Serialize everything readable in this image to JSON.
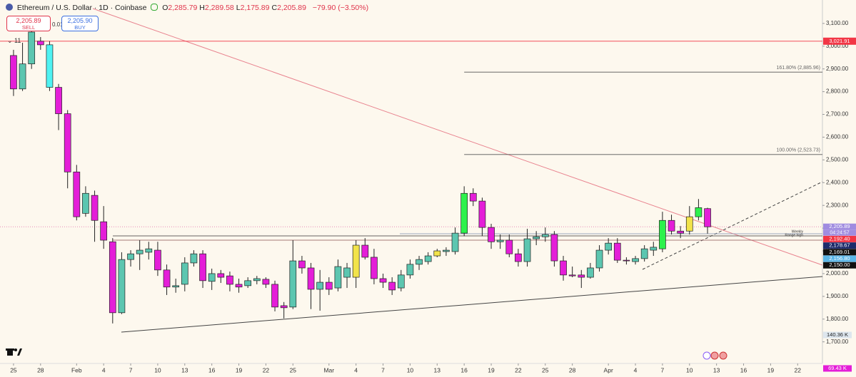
{
  "header": {
    "title": "Ethereum / U.S. Dollar · 1D · Coinbase",
    "ohlc": [
      {
        "key": "O",
        "value": "2,285.79"
      },
      {
        "key": "H",
        "value": "2,289.58"
      },
      {
        "key": "L",
        "value": "2,175.89"
      },
      {
        "key": "C",
        "value": "2,205.89"
      }
    ],
    "change": "−79.90 (−3.50%)",
    "indicators": "11"
  },
  "trade": {
    "sell_price": "2,205.89",
    "sell": "SELL",
    "spread": "0.01",
    "buy_price": "2,205.90",
    "buy": "BUY"
  },
  "chart_data": {
    "type": "candlestick",
    "x": [
      0,
      1,
      2,
      3,
      4,
      5,
      6,
      7,
      8,
      9,
      10,
      11,
      12,
      13,
      14,
      15,
      16,
      17,
      18,
      19,
      20,
      21,
      22,
      23,
      24,
      25,
      26,
      27,
      28,
      29,
      30,
      31,
      32,
      33,
      34,
      35,
      36,
      37,
      38,
      39,
      40,
      41,
      42,
      43,
      44,
      45,
      46,
      47,
      48,
      49,
      50,
      51,
      52,
      53,
      54,
      55,
      56,
      57,
      58,
      59,
      60,
      61,
      62,
      63,
      64,
      65,
      66,
      67,
      68,
      69,
      70,
      71,
      72,
      73,
      74,
      75,
      76,
      77
    ],
    "open": [
      2959,
      2812,
      2922,
      3022,
      3006,
      2819,
      2703,
      2447,
      2265,
      2344,
      2228,
      2140,
      1828,
      2062,
      2087,
      2094,
      2103,
      2016,
      1941,
      1953,
      2047,
      2087,
      1966,
      2000,
      1990,
      1953,
      1947,
      1969,
      1975,
      1953,
      1859,
      1853,
      2056,
      2025,
      1931,
      1962,
      1937,
      1984,
      1984,
      2125,
      2072,
      1978,
      1962,
      1937,
      1994,
      2041,
      2053,
      2078,
      2097,
      2097,
      2178,
      2353,
      2319,
      2203,
      2140,
      2147,
      2087,
      2053,
      2153,
      2162,
      2172,
      2056,
      1994,
      1994,
      1984,
      2025,
      2103,
      2134,
      2059,
      2053,
      2066,
      2103,
      2109,
      2234,
      2187,
      2187,
      2250,
      2285.79
    ],
    "high": [
      2984,
      3015,
      3094,
      3040,
      3022,
      2834,
      2719,
      2478,
      2384,
      2365,
      2297,
      2156,
      2094,
      2103,
      2147,
      2140,
      2140,
      2040,
      1978,
      2072,
      2103,
      2103,
      2022,
      2016,
      2009,
      1978,
      1984,
      1990,
      1984,
      1969,
      1875,
      2147,
      2078,
      2047,
      2016,
      1984,
      2062,
      2047,
      2147,
      2156,
      2109,
      2000,
      1984,
      2016,
      2062,
      2078,
      2094,
      2109,
      2116,
      2203,
      2384,
      2375,
      2334,
      2219,
      2172,
      2172,
      2109,
      2197,
      2187,
      2203,
      2187,
      2078,
      2031,
      2016,
      2047,
      2125,
      2156,
      2156,
      2072,
      2078,
      2125,
      2140,
      2272,
      2259,
      2209,
      2297,
      2328,
      2289.58
    ],
    "low": [
      2781,
      2803,
      2900,
      2984,
      2803,
      2631,
      2375,
      2234,
      2250,
      2140,
      2109,
      1781,
      1822,
      2031,
      2016,
      2062,
      1990,
      1906,
      1916,
      1922,
      2031,
      1937,
      1928,
      1959,
      1922,
      1916,
      1937,
      1953,
      1937,
      1834,
      1803,
      1844,
      2000,
      1844,
      1837,
      1906,
      1922,
      1937,
      1937,
      2062,
      1953,
      1937,
      1906,
      1922,
      1978,
      2016,
      2040,
      2072,
      2078,
      2084,
      2165,
      2297,
      2165,
      2109,
      2109,
      2072,
      2031,
      2031,
      2125,
      2140,
      2031,
      1969,
      1984,
      1937,
      1978,
      2009,
      2084,
      2047,
      2040,
      2040,
      2053,
      2078,
      2094,
      2172,
      2156,
      2172,
      2234,
      2175.89
    ],
    "close": [
      2812,
      2922,
      3062,
      3006,
      2819,
      2703,
      2447,
      2250,
      2353,
      2234,
      2147,
      1828,
      2062,
      2087,
      2103,
      2109,
      2016,
      1941,
      1947,
      2047,
      2087,
      1969,
      2000,
      1984,
      1953,
      1941,
      1969,
      1978,
      1953,
      1853,
      1850,
      2056,
      2025,
      1931,
      1962,
      1931,
      2031,
      2025,
      2125,
      2072,
      1978,
      1962,
      1928,
      1994,
      2041,
      2062,
      2078,
      2100,
      2103,
      2178,
      2353,
      2319,
      2203,
      2140,
      2147,
      2087,
      2053,
      2153,
      2162,
      2172,
      2056,
      1994,
      1990,
      1984,
      2025,
      2103,
      2134,
      2059,
      2056,
      2066,
      2109,
      2116,
      2234,
      2187,
      2178,
      2250,
      2290,
      2205.89
    ],
    "colors": [
      "#e41ed8",
      "#5cc6b0",
      "#5cc6b0",
      "#e41ed8",
      "#4ff2f2",
      "#e41ed8",
      "#e41ed8",
      "#e41ed8",
      "#5cc6b0",
      "#e41ed8",
      "#e41ed8",
      "#e41ed8",
      "#5cc6b0",
      "#5cc6b0",
      "#5cc6b0",
      "#5cc6b0",
      "#e41ed8",
      "#e41ed8",
      "#5cc6b0",
      "#5cc6b0",
      "#5cc6b0",
      "#e41ed8",
      "#5cc6b0",
      "#e41ed8",
      "#e41ed8",
      "#e41ed8",
      "#5cc6b0",
      "#5cc6b0",
      "#e41ed8",
      "#e41ed8",
      "#e41ed8",
      "#5cc6b0",
      "#e41ed8",
      "#e41ed8",
      "#5cc6b0",
      "#e41ed8",
      "#5cc6b0",
      "#5cc6b0",
      "#f2e34a",
      "#e41ed8",
      "#e41ed8",
      "#e41ed8",
      "#e41ed8",
      "#5cc6b0",
      "#5cc6b0",
      "#5cc6b0",
      "#5cc6b0",
      "#f2e34a",
      "#5cc6b0",
      "#5cc6b0",
      "#2df24c",
      "#e41ed8",
      "#e41ed8",
      "#e41ed8",
      "#5cc6b0",
      "#e41ed8",
      "#e41ed8",
      "#5cc6b0",
      "#5cc6b0",
      "#5cc6b0",
      "#e41ed8",
      "#e41ed8",
      "#e41ed8",
      "#e41ed8",
      "#5cc6b0",
      "#5cc6b0",
      "#5cc6b0",
      "#e41ed8",
      "#e41ed8",
      "#5cc6b0",
      "#5cc6b0",
      "#5cc6b0",
      "#2df24c",
      "#e41ed8",
      "#e41ed8",
      "#f2e34a",
      "#2df24c",
      "#e41ed8"
    ],
    "xlim": [
      -1.5,
      89.75
    ],
    "xticks": [
      {
        "value": 0,
        "label": "25"
      },
      {
        "value": 3,
        "label": "28"
      },
      {
        "value": 7,
        "label": "Feb"
      },
      {
        "value": 10,
        "label": "4"
      },
      {
        "value": 13,
        "label": "7"
      },
      {
        "value": 16,
        "label": "10"
      },
      {
        "value": 19,
        "label": "13"
      },
      {
        "value": 22,
        "label": "16"
      },
      {
        "value": 25,
        "label": "19"
      },
      {
        "value": 28,
        "label": "22"
      },
      {
        "value": 31,
        "label": "25"
      },
      {
        "value": 35,
        "label": "Mar"
      },
      {
        "value": 38,
        "label": "4"
      },
      {
        "value": 41,
        "label": "7"
      },
      {
        "value": 44,
        "label": "10"
      },
      {
        "value": 47,
        "label": "13"
      },
      {
        "value": 50,
        "label": "16"
      },
      {
        "value": 53,
        "label": "19"
      },
      {
        "value": 56,
        "label": "22"
      },
      {
        "value": 59,
        "label": "25"
      },
      {
        "value": 62,
        "label": "28"
      },
      {
        "value": 66,
        "label": "Apr"
      },
      {
        "value": 69,
        "label": "4"
      },
      {
        "value": 72,
        "label": "7"
      },
      {
        "value": 75,
        "label": "10"
      },
      {
        "value": 78,
        "label": "13"
      },
      {
        "value": 81,
        "label": "16"
      },
      {
        "value": 84,
        "label": "19"
      },
      {
        "value": 87,
        "label": "22"
      }
    ],
    "ylim": [
      1605,
      3203
    ],
    "yticks": [
      {
        "value": 1700,
        "label": "1,700.00"
      },
      {
        "value": 1800,
        "label": "1,800.00"
      },
      {
        "value": 1900,
        "label": "1,900.00"
      },
      {
        "value": 2000,
        "label": "2,000.00"
      },
      {
        "value": 2100,
        "label": "2,100.00"
      },
      {
        "value": 2200,
        "label": "2,200.00"
      },
      {
        "value": 2300,
        "label": "2,300.00"
      },
      {
        "value": 2400,
        "label": "2,400.00"
      },
      {
        "value": 2500,
        "label": "2,500.00"
      },
      {
        "value": 2600,
        "label": "2,600.00"
      },
      {
        "value": 2700,
        "label": "2,700.00"
      },
      {
        "value": 2800,
        "label": "2,800.00"
      },
      {
        "value": 2900,
        "label": "2,900.00"
      },
      {
        "value": 3000,
        "label": "3,000.00"
      },
      {
        "value": 3100,
        "label": "3,100.00"
      }
    ],
    "levels": [
      {
        "value": 3021.91,
        "label": "3,021.91",
        "color": "#f23645"
      }
    ],
    "fibs": [
      {
        "value": 2885.96,
        "label": "161.80% (2,885.96)"
      },
      {
        "value": 2523.73,
        "label": "100.00% (2,523.73)"
      }
    ],
    "price_labels": [
      {
        "value": 2205.89,
        "label": "2,205.89",
        "color": "#a08ce0"
      },
      {
        "value": 2192.4,
        "label": "2,192.40",
        "color": "#f23645"
      },
      {
        "value": 2178.67,
        "label": "2,178.67",
        "color": "#1c2b6b"
      },
      {
        "value": 2169.01,
        "label": "2,169.01",
        "color": "#111111"
      },
      {
        "value": 2156.8,
        "label": "2,156.80",
        "color": "#5bb6e8"
      },
      {
        "value": 2150.0,
        "label": "2,150.00",
        "color": "#111111"
      }
    ],
    "countdown": "04:24:57",
    "line_notes": [
      "Weekly",
      "Range high"
    ],
    "volume_labels": [
      "140.36 K",
      "69.43 K"
    ]
  }
}
